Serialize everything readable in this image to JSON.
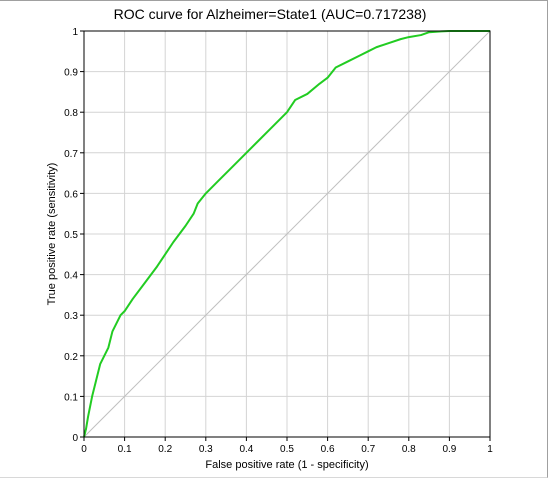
{
  "chart_data": {
    "type": "line",
    "title": "ROC curve for Alzheimer=State1 (AUC=0.717238)",
    "xlabel": "False positive rate (1 - specificity)",
    "ylabel": "True positive rate (sensitivity)",
    "xlim": [
      0,
      1
    ],
    "ylim": [
      0,
      1
    ],
    "grid": true,
    "xticks": [
      "0",
      "0.1",
      "0.2",
      "0.3",
      "0.4",
      "0.5",
      "0.6",
      "0.7",
      "0.8",
      "0.9",
      "1"
    ],
    "yticks": [
      "0",
      "0.1",
      "0.2",
      "0.3",
      "0.4",
      "0.5",
      "0.6",
      "0.7",
      "0.8",
      "0.9",
      "1"
    ],
    "series": [
      {
        "color": "#22cc22",
        "x": [
          0,
          0.005,
          0.01,
          0.02,
          0.03,
          0.04,
          0.05,
          0.06,
          0.07,
          0.08,
          0.09,
          0.1,
          0.12,
          0.15,
          0.18,
          0.2,
          0.22,
          0.25,
          0.27,
          0.28,
          0.3,
          0.33,
          0.36,
          0.4,
          0.43,
          0.46,
          0.5,
          0.52,
          0.55,
          0.58,
          0.6,
          0.62,
          0.65,
          0.68,
          0.7,
          0.72,
          0.75,
          0.78,
          0.8,
          0.83,
          0.85,
          0.88,
          0.9,
          0.95,
          1
        ],
        "y": [
          0,
          0.02,
          0.05,
          0.1,
          0.14,
          0.18,
          0.2,
          0.22,
          0.26,
          0.28,
          0.3,
          0.31,
          0.34,
          0.38,
          0.42,
          0.45,
          0.48,
          0.52,
          0.55,
          0.575,
          0.6,
          0.63,
          0.66,
          0.7,
          0.73,
          0.76,
          0.8,
          0.83,
          0.845,
          0.87,
          0.885,
          0.91,
          0.925,
          0.94,
          0.95,
          0.96,
          0.97,
          0.98,
          0.985,
          0.99,
          0.997,
          0.999,
          1,
          1,
          1
        ]
      },
      {
        "color": "#c0c0c0",
        "x": [
          0,
          1
        ],
        "y": [
          0,
          1
        ]
      }
    ]
  }
}
